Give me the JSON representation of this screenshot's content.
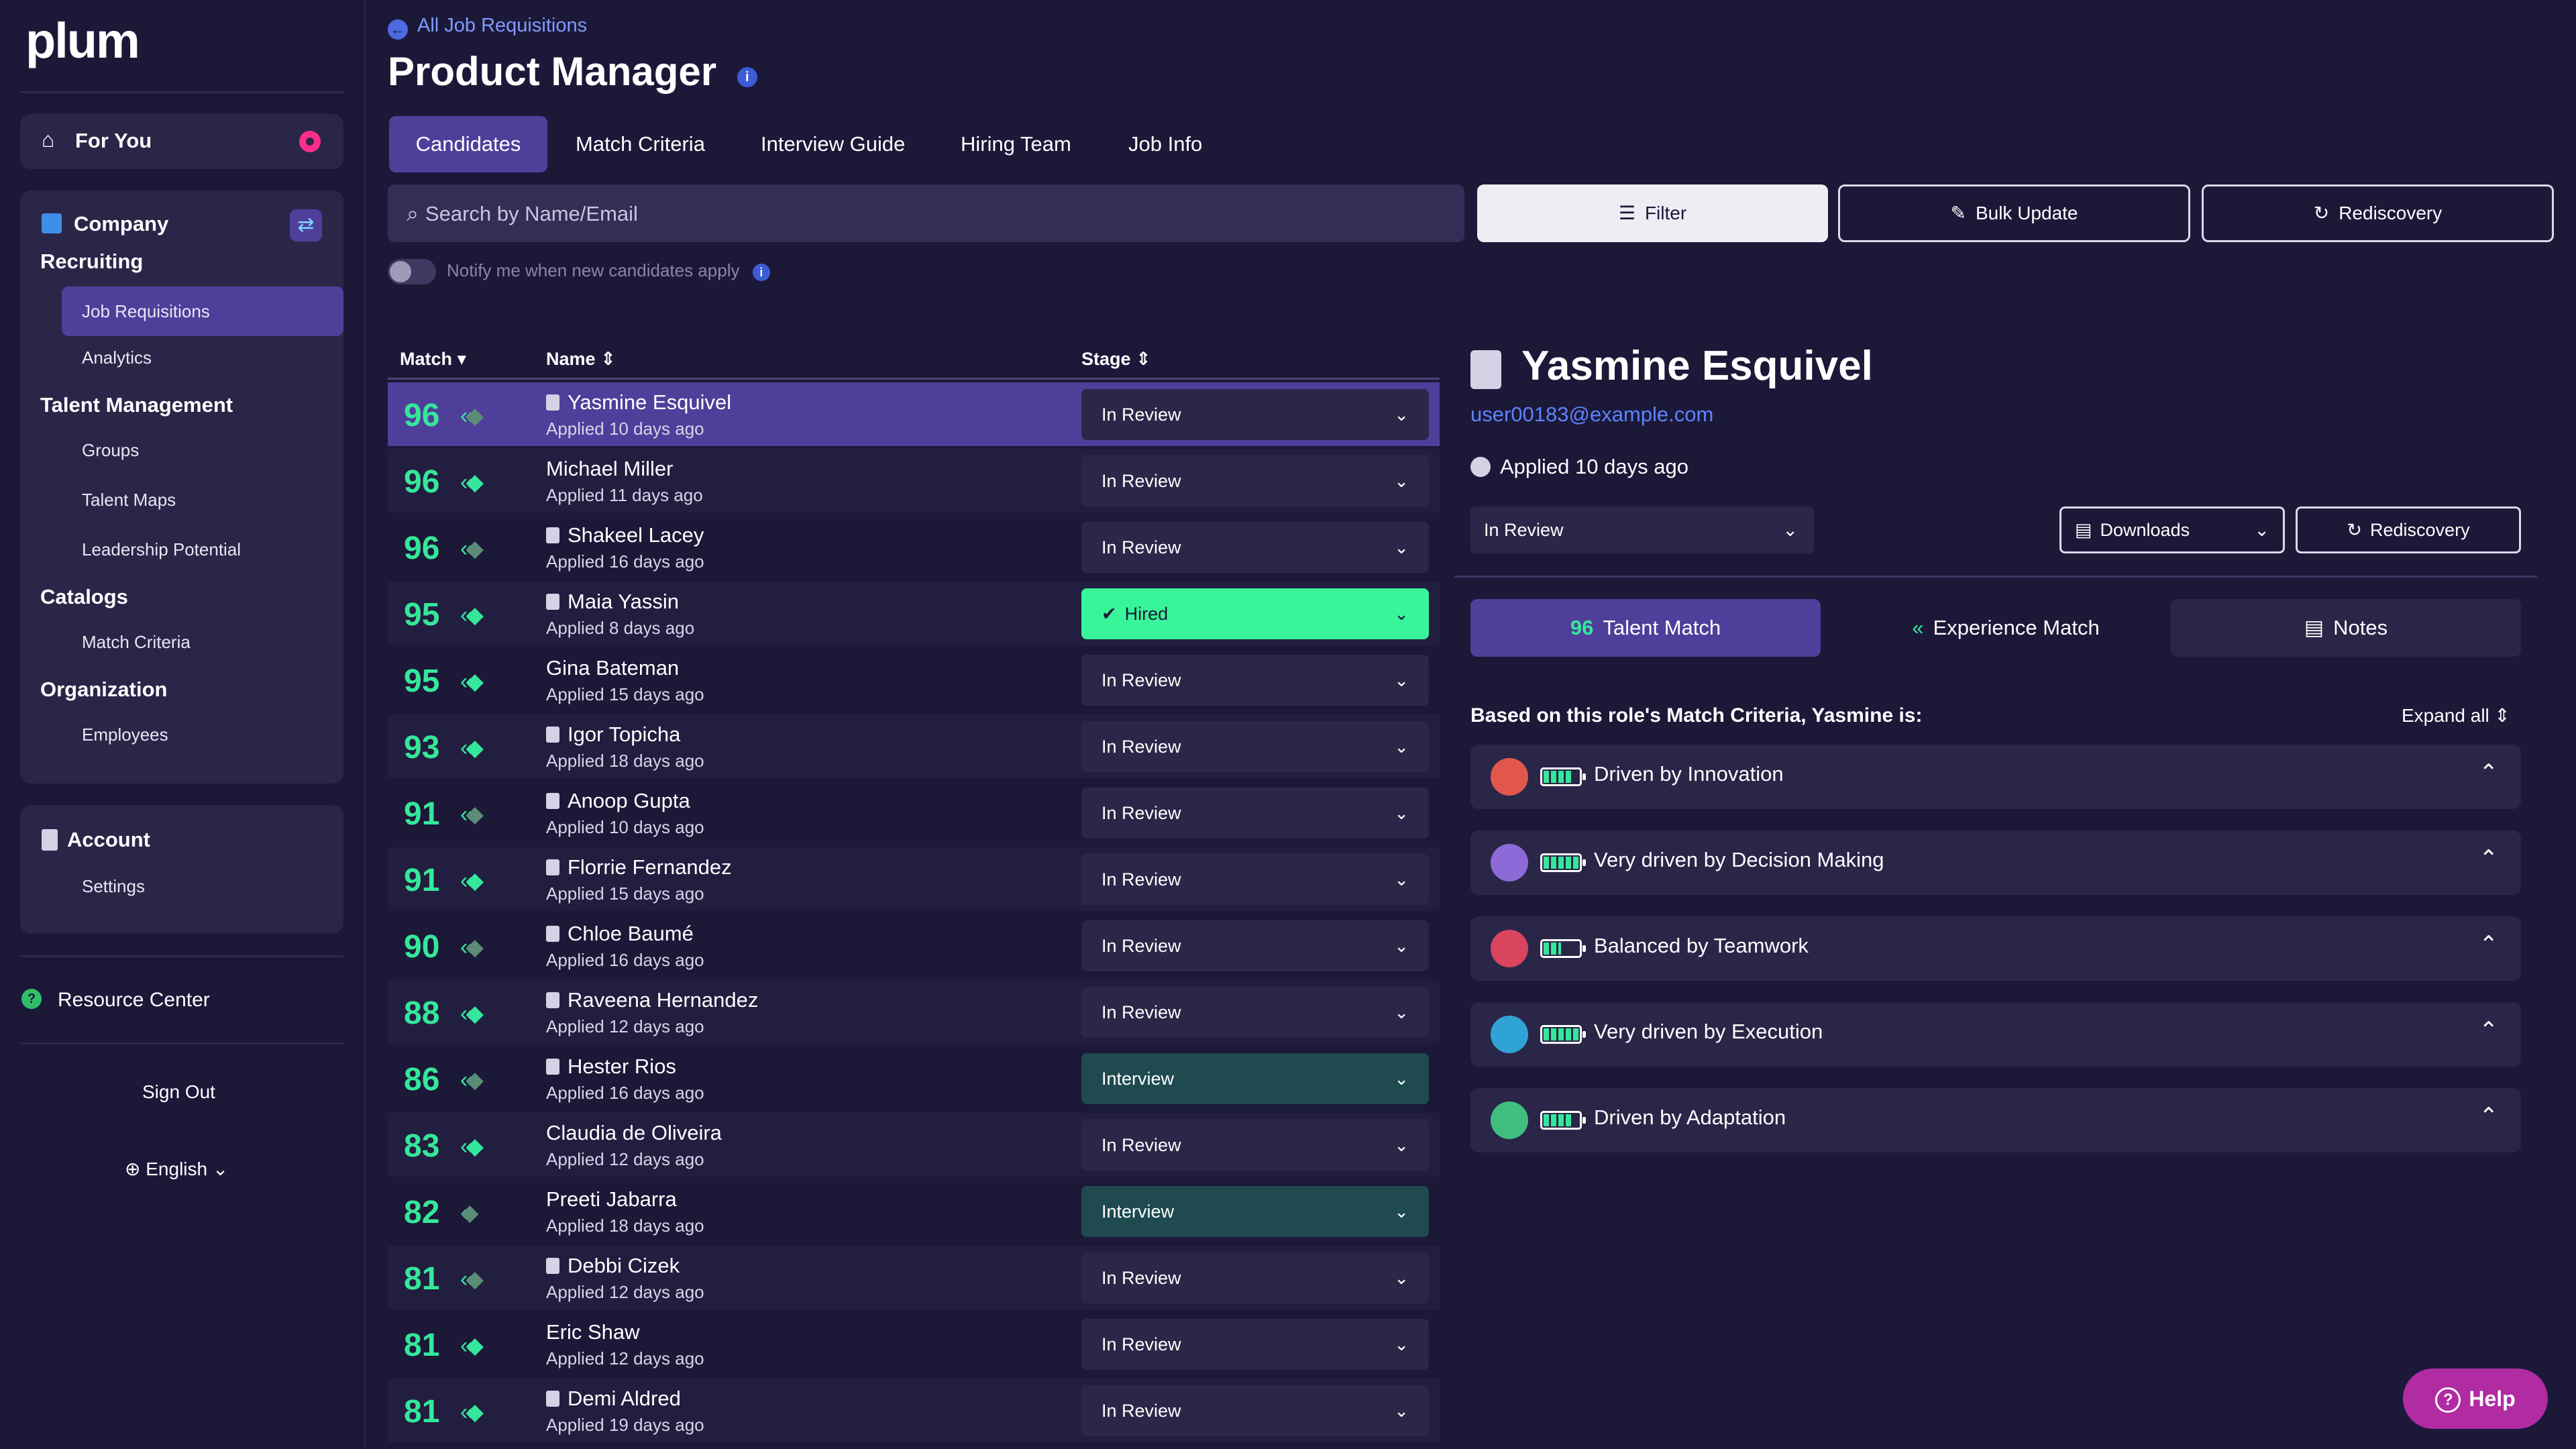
{
  "sidebar": {
    "logo": "plum",
    "for_you": "For You",
    "company_title_1": "Company",
    "company_title_2": "Recruiting",
    "recruiting_items": [
      "Job Requisitions",
      "Analytics"
    ],
    "talent_title": "Talent Management",
    "talent_items": [
      "Groups",
      "Talent Maps",
      "Leadership Potential"
    ],
    "catalogs_title": "Catalogs",
    "catalogs_items": [
      "Match Criteria"
    ],
    "org_title": "Organization",
    "org_items": [
      "Employees"
    ],
    "account_title": "Account",
    "account_items": [
      "Settings"
    ],
    "resource_center": "Resource Center",
    "sign_out": "Sign Out",
    "language": "English"
  },
  "header": {
    "breadcrumb": "All Job Requisitions",
    "title": "Product Manager",
    "tabs": [
      "Candidates",
      "Match Criteria",
      "Interview Guide",
      "Hiring Team",
      "Job Info"
    ],
    "active_tab": "Candidates"
  },
  "toolbar": {
    "search_placeholder": "Search by Name/Email",
    "filter": "Filter",
    "bulk_update": "Bulk Update",
    "rediscovery": "Rediscovery",
    "notify": "Notify me when new candidates apply"
  },
  "table": {
    "headers": {
      "match": "Match",
      "name": "Name",
      "stage": "Stage"
    },
    "rows": [
      {
        "score": "96",
        "name": "Yasmine Esquivel",
        "applied": "Applied 10 days ago",
        "stage": "In Review",
        "icon": true,
        "match_level": 2
      },
      {
        "score": "96",
        "name": "Michael Miller",
        "applied": "Applied 11 days ago",
        "stage": "In Review",
        "icon": false,
        "match_level": 3
      },
      {
        "score": "96",
        "name": "Shakeel Lacey",
        "applied": "Applied 16 days ago",
        "stage": "In Review",
        "icon": true,
        "match_level": 2
      },
      {
        "score": "95",
        "name": "Maia Yassin",
        "applied": "Applied 8 days ago",
        "stage": "Hired",
        "icon": true,
        "match_level": 3
      },
      {
        "score": "95",
        "name": "Gina Bateman",
        "applied": "Applied 15 days ago",
        "stage": "In Review",
        "icon": false,
        "match_level": 3
      },
      {
        "score": "93",
        "name": "Igor Topicha",
        "applied": "Applied 18 days ago",
        "stage": "In Review",
        "icon": true,
        "match_level": 3
      },
      {
        "score": "91",
        "name": "Anoop Gupta",
        "applied": "Applied 10 days ago",
        "stage": "In Review",
        "icon": true,
        "match_level": 2
      },
      {
        "score": "91",
        "name": "Florrie Fernandez",
        "applied": "Applied 15 days ago",
        "stage": "In Review",
        "icon": true,
        "match_level": 3
      },
      {
        "score": "90",
        "name": "Chloe Baumé",
        "applied": "Applied 16 days ago",
        "stage": "In Review",
        "icon": true,
        "match_level": 2
      },
      {
        "score": "88",
        "name": "Raveena Hernandez",
        "applied": "Applied 12 days ago",
        "stage": "In Review",
        "icon": true,
        "match_level": 3
      },
      {
        "score": "86",
        "name": "Hester Rios",
        "applied": "Applied 16 days ago",
        "stage": "Interview",
        "icon": true,
        "match_level": 2
      },
      {
        "score": "83",
        "name": "Claudia de Oliveira",
        "applied": "Applied 12 days ago",
        "stage": "In Review",
        "icon": false,
        "match_level": 3
      },
      {
        "score": "82",
        "name": "Preeti Jabarra",
        "applied": "Applied 18 days ago",
        "stage": "Interview",
        "icon": false,
        "match_level": 1
      },
      {
        "score": "81",
        "name": "Debbi Cizek",
        "applied": "Applied 12 days ago",
        "stage": "In Review",
        "icon": true,
        "match_level": 2
      },
      {
        "score": "81",
        "name": "Eric Shaw",
        "applied": "Applied 12 days ago",
        "stage": "In Review",
        "icon": false,
        "match_level": 3
      },
      {
        "score": "81",
        "name": "Demi Aldred",
        "applied": "Applied 19 days ago",
        "stage": "In Review",
        "icon": true,
        "match_level": 3
      }
    ]
  },
  "detail": {
    "name": "Yasmine Esquivel",
    "email": "user00183@example.com",
    "applied": "Applied 10 days ago",
    "stage": "In Review",
    "downloads": "Downloads",
    "rediscovery": "Rediscovery",
    "talent_match_score": "96",
    "talent_match": "Talent Match",
    "experience_match": "Experience Match",
    "notes": "Notes",
    "based_on": "Based on this role's Match Criteria, Yasmine is:",
    "expand_all": "Expand all",
    "criteria": [
      {
        "label": "Driven by Innovation",
        "level": 0.8,
        "color": "#e2574c"
      },
      {
        "label": "Very driven by Decision Making",
        "level": 1.0,
        "color": "#8d6ad8"
      },
      {
        "label": "Balanced by Teamwork",
        "level": 0.5,
        "color": "#d9455f"
      },
      {
        "label": "Very driven by Execution",
        "level": 1.0,
        "color": "#2fa3d6"
      },
      {
        "label": "Driven by Adaptation",
        "level": 0.8,
        "color": "#3fbf7f"
      }
    ]
  },
  "help": "Help",
  "colors": {
    "accent": "#4f3f9a",
    "score": "#35e79a",
    "hired": "#38f59a",
    "interview": "#1e4a50",
    "link": "#5b84ff"
  }
}
